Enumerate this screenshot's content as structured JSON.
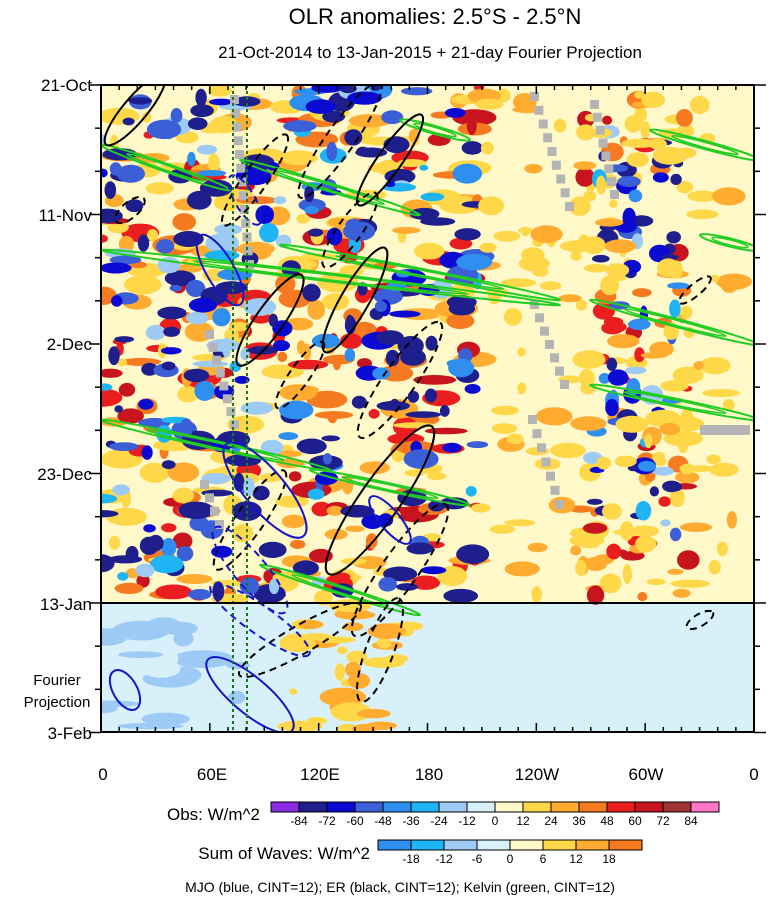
{
  "chart_data": {
    "type": "heatmap",
    "title": "OLR anomalies: 2.5°S - 2.5°N",
    "subtitle": "21-Oct-2014 to 13-Jan-2015 + 21-day Fourier Projection",
    "x_ticks": [
      "0",
      "60E",
      "120E",
      "180",
      "120W",
      "60W",
      "0"
    ],
    "y_ticks": [
      "21-Oct",
      "11-Nov",
      "2-Dec",
      "23-Dec",
      "13-Jan",
      "3-Feb"
    ],
    "projection_label": "Fourier Projection",
    "projection_start": "13-Jan",
    "colorbars": [
      {
        "label": "Obs: W/m^2",
        "levels": [
          "-84",
          "-72",
          "-60",
          "-48",
          "-36",
          "-24",
          "-12",
          "0",
          "12",
          "24",
          "36",
          "48",
          "60",
          "72",
          "84"
        ],
        "colors": [
          "#8a2be2",
          "#1e1e8c",
          "#0a0ad2",
          "#3b5fd6",
          "#2f8ff0",
          "#1eb4f5",
          "#9ecbf5",
          "#d8f0fa",
          "#fff8c8",
          "#ffd84a",
          "#ffac30",
          "#f57a20",
          "#ea1e1e",
          "#c8141e",
          "#a03232",
          "#ff78c8"
        ]
      },
      {
        "label": "Sum of Waves: W/m^2",
        "levels": [
          "-18",
          "-12",
          "-6",
          "0",
          "6",
          "12",
          "18"
        ],
        "colors": [
          "#2f8ff0",
          "#1eb4f5",
          "#9ecbf5",
          "#d8f0fa",
          "#fff8c8",
          "#ffd84a",
          "#ffac30",
          "#f57a20"
        ]
      }
    ],
    "footer": "MJO (blue, CINT=12); ER (black, CINT=12); Kelvin (green, CINT=12)",
    "series": [
      {
        "name": "MJO",
        "color": "#1414c8"
      },
      {
        "name": "ER",
        "color": "#000000"
      },
      {
        "name": "Kelvin",
        "color": "#22cc22"
      }
    ]
  }
}
